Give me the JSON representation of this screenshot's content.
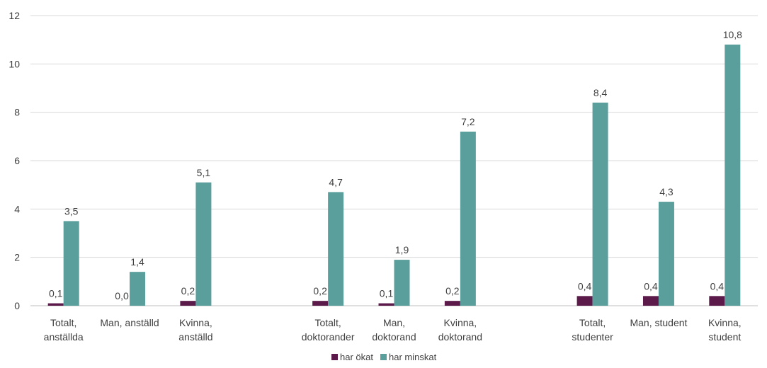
{
  "chart_data": {
    "type": "bar",
    "categories": [
      [
        "Totalt,",
        "anställda"
      ],
      [
        "Man, anställd"
      ],
      [
        "Kvinna,",
        "anställd"
      ],
      [
        ""
      ],
      [
        "Totalt,",
        "doktorander"
      ],
      [
        "Man,",
        "doktorand"
      ],
      [
        "Kvinna,",
        "doktorand"
      ],
      [
        ""
      ],
      [
        "Totalt,",
        "studenter"
      ],
      [
        "Man, student"
      ],
      [
        "Kvinna,",
        "student"
      ]
    ],
    "series": [
      {
        "name": "har ökat",
        "color": "#5c1a4b",
        "values": [
          0.1,
          0.0,
          0.2,
          null,
          0.2,
          0.1,
          0.2,
          null,
          0.4,
          0.4,
          0.4
        ],
        "labels": [
          "0,1",
          "0,0",
          "0,2",
          null,
          "0,2",
          "0,1",
          "0,2",
          null,
          "0,4",
          "0,4",
          "0,4"
        ]
      },
      {
        "name": "har minskat",
        "color": "#5a9f9c",
        "values": [
          3.5,
          1.4,
          5.1,
          null,
          4.7,
          1.9,
          7.2,
          null,
          8.4,
          4.3,
          10.8
        ],
        "labels": [
          "3,5",
          "1,4",
          "5,1",
          null,
          "4,7",
          "1,9",
          "7,2",
          null,
          "8,4",
          "4,3",
          "10,8"
        ]
      }
    ],
    "ylim": [
      0,
      12
    ],
    "yticks": [
      0,
      2,
      4,
      6,
      8,
      10,
      12
    ],
    "grid": true,
    "legend": "bottom"
  }
}
